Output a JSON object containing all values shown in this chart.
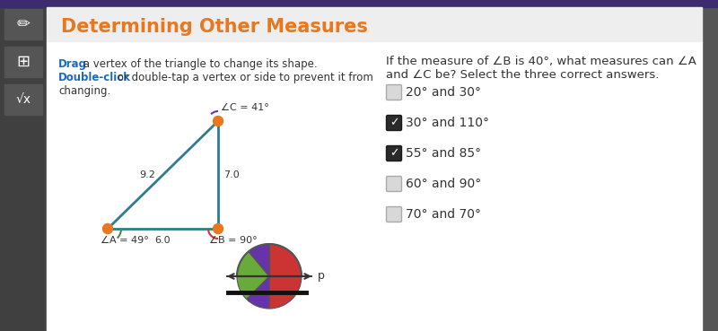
{
  "title": "Determining Other Measures",
  "title_color": "#E87820",
  "header_stripe_color": "#3d2b6e",
  "header_bg_color": "#eeeeee",
  "sidebar_bg": "#404040",
  "sidebar_icon_bg": "#555555",
  "main_bg": "#ffffff",
  "drag_text_bold": "Drag",
  "drag_text_rest": " a vertex of the triangle to change its shape.",
  "doubleclick_bold": "Double-click",
  "doubleclick_rest": " or double-tap a vertex or side to prevent it from",
  "changing_text": "changing.",
  "link_color": "#1a6bbf",
  "text_color": "#333333",
  "question_line1": "If the measure of ∠B is 40°, what measures can ∠A",
  "question_line2": "and ∠C be? Select the three correct answers.",
  "tri_label_A": "∠A = 49°",
  "tri_label_B": "∠B = 90°",
  "tri_label_C": "∠C = 41°",
  "tri_side_AB": "6.0",
  "tri_side_BC": "7.0",
  "tri_side_AC": "9.2",
  "tri_vertex_color": "#E87820",
  "tri_line_color": "#2d7d8a",
  "tri_angle_A_color": "#4a8a4a",
  "tri_angle_B_color": "#cc3333",
  "tri_angle_C_color": "#6633aa",
  "options": [
    {
      "text": "20° and 30°",
      "checked": false
    },
    {
      "text": "30° and 110°",
      "checked": true
    },
    {
      "text": "55° and 85°",
      "checked": true
    },
    {
      "text": "60° and 90°",
      "checked": false
    },
    {
      "text": "70° and 70°",
      "checked": false
    }
  ],
  "semi_green_color": "#6aaa3a",
  "semi_purple_color": "#6633aa",
  "semi_red_color": "#cc3333",
  "semi_outline_color": "#555555",
  "p_label": "p"
}
